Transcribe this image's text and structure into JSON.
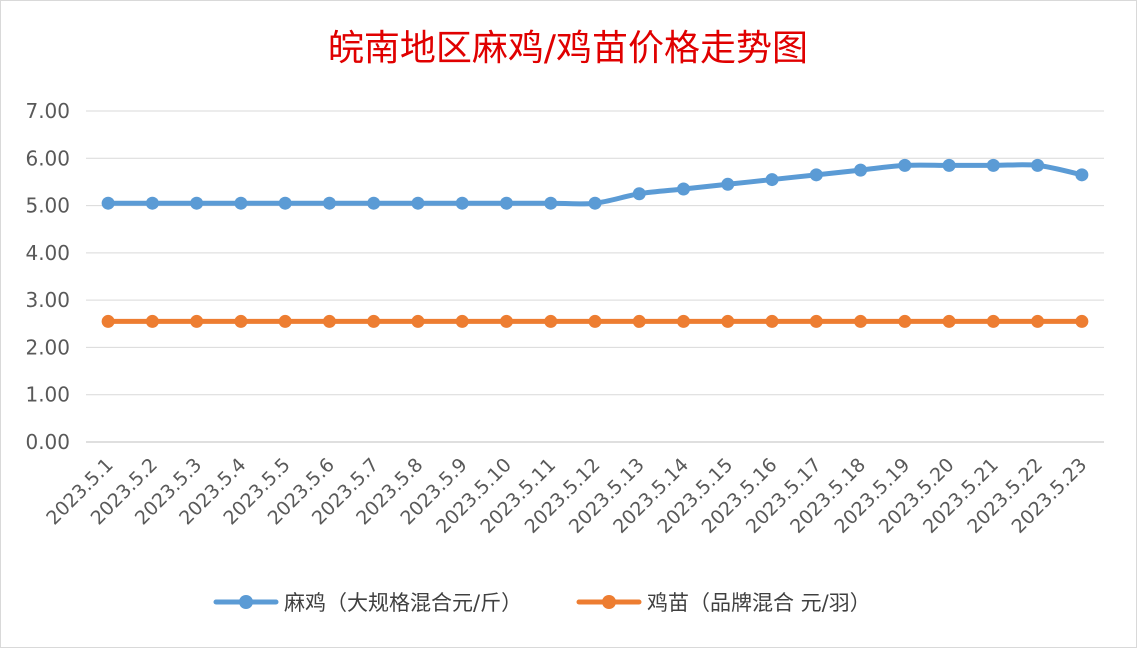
{
  "chart_data": {
    "type": "line",
    "title": "皖南地区麻鸡/鸡苗价格走势图",
    "xlabel": "",
    "ylabel": "",
    "ylim": [
      0,
      7
    ],
    "yticks": [
      "0.00",
      "1.00",
      "2.00",
      "3.00",
      "4.00",
      "5.00",
      "6.00",
      "7.00"
    ],
    "categories": [
      "2023.5.1",
      "2023.5.2",
      "2023.5.3",
      "2023.5.4",
      "2023.5.5",
      "2023.5.6",
      "2023.5.7",
      "2023.5.8",
      "2023.5.9",
      "2023.5.10",
      "2023.5.11",
      "2023.5.12",
      "2023.5.13",
      "2023.5.14",
      "2023.5.15",
      "2023.5.16",
      "2023.5.17",
      "2023.5.18",
      "2023.5.19",
      "2023.5.20",
      "2023.5.21",
      "2023.5.22",
      "2023.5.23"
    ],
    "series": [
      {
        "name": "麻鸡（大规格混合元/斤）",
        "color": "#5b9bd5",
        "values": [
          5.05,
          5.05,
          5.05,
          5.05,
          5.05,
          5.05,
          5.05,
          5.05,
          5.05,
          5.05,
          5.05,
          5.05,
          5.25,
          5.35,
          5.45,
          5.55,
          5.65,
          5.75,
          5.85,
          5.85,
          5.85,
          5.85,
          5.65
        ]
      },
      {
        "name": "鸡苗（品牌混合 元/羽）",
        "color": "#ed7d31",
        "values": [
          2.55,
          2.55,
          2.55,
          2.55,
          2.55,
          2.55,
          2.55,
          2.55,
          2.55,
          2.55,
          2.55,
          2.55,
          2.55,
          2.55,
          2.55,
          2.55,
          2.55,
          2.55,
          2.55,
          2.55,
          2.55,
          2.55,
          2.55
        ]
      }
    ],
    "grid": true,
    "legend_position": "bottom"
  }
}
